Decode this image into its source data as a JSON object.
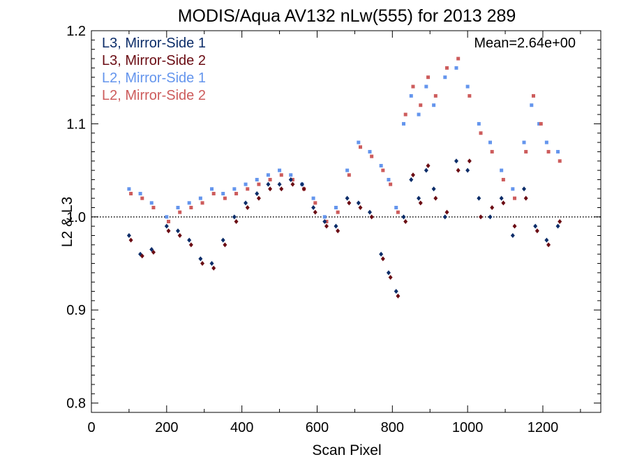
{
  "chart_data": {
    "type": "scatter",
    "title": "MODIS/Aqua AV132 nLw(555) for 2013 289",
    "xlabel": "Scan Pixel",
    "ylabel": "L2 & L3",
    "xlim": [
      0,
      1354
    ],
    "ylim": [
      0.79,
      1.2
    ],
    "x_ticks": [
      0,
      200,
      400,
      600,
      800,
      1000,
      1200
    ],
    "x_tick_labels": [
      "0",
      "200",
      "400",
      "600",
      "800",
      "1000",
      "1200"
    ],
    "y_ticks": [
      0.8,
      0.9,
      1.0,
      1.1,
      1.2
    ],
    "y_tick_labels": [
      "0.8",
      "0.9",
      "1.0",
      "1.1",
      "1.2"
    ],
    "reference_line": {
      "y": 1.0,
      "style": "dotted"
    },
    "annotation": {
      "text": "Mean=2.64e+00",
      "color": "#cd5c5c"
    },
    "legend": {
      "position": "top-left"
    },
    "series": [
      {
        "name": "L3, Mirror-Side 1",
        "color": "#0c2d69",
        "marker": "diamond",
        "x": [
          100,
          130,
          160,
          200,
          230,
          260,
          290,
          320,
          350,
          380,
          410,
          440,
          470,
          500,
          530,
          560,
          590,
          620,
          650,
          680,
          710,
          740,
          770,
          790,
          810,
          830,
          850,
          870,
          890,
          910,
          940,
          970,
          1000,
          1030,
          1060,
          1090,
          1120,
          1150,
          1180,
          1210,
          1240
        ],
        "y": [
          0.98,
          0.96,
          0.965,
          0.99,
          0.985,
          0.975,
          0.955,
          0.95,
          0.975,
          1.0,
          1.015,
          1.025,
          1.035,
          1.035,
          1.04,
          1.035,
          1.01,
          0.995,
          0.99,
          1.02,
          1.015,
          1.005,
          0.96,
          0.94,
          0.92,
          1.0,
          1.04,
          1.02,
          1.05,
          1.03,
          1.0,
          1.06,
          1.05,
          1.02,
          1.0,
          1.02,
          0.98,
          1.03,
          0.99,
          0.975,
          0.99
        ]
      },
      {
        "name": "L3, Mirror-Side 2",
        "color": "#6b0d14",
        "marker": "diamond",
        "x": [
          105,
          135,
          165,
          205,
          235,
          265,
          295,
          325,
          355,
          385,
          415,
          445,
          475,
          505,
          535,
          565,
          595,
          625,
          655,
          685,
          715,
          745,
          775,
          795,
          815,
          835,
          855,
          875,
          895,
          915,
          945,
          975,
          1005,
          1035,
          1065,
          1095,
          1125,
          1155,
          1185,
          1215,
          1245
        ],
        "y": [
          0.975,
          0.958,
          0.962,
          0.985,
          0.98,
          0.97,
          0.95,
          0.945,
          0.97,
          0.995,
          1.01,
          1.02,
          1.03,
          1.03,
          1.035,
          1.03,
          1.005,
          0.99,
          0.985,
          1.015,
          1.01,
          1.0,
          0.955,
          0.935,
          0.915,
          0.995,
          1.045,
          1.015,
          1.055,
          1.02,
          1.005,
          1.05,
          1.06,
          1.0,
          1.01,
          1.015,
          0.99,
          1.02,
          0.985,
          0.97,
          0.995
        ]
      },
      {
        "name": "L2, Mirror-Side 1",
        "color": "#6495ed",
        "marker": "square",
        "x": [
          100,
          130,
          160,
          200,
          230,
          260,
          290,
          320,
          350,
          380,
          410,
          440,
          470,
          500,
          530,
          560,
          590,
          620,
          650,
          680,
          710,
          740,
          770,
          790,
          810,
          830,
          850,
          870,
          890,
          910,
          940,
          970,
          1000,
          1030,
          1060,
          1090,
          1120,
          1150,
          1170,
          1190,
          1210,
          1240
        ],
        "y": [
          1.03,
          1.025,
          1.015,
          1.0,
          1.01,
          1.015,
          1.02,
          1.03,
          1.025,
          1.03,
          1.035,
          1.04,
          1.045,
          1.05,
          1.045,
          1.035,
          1.02,
          1.0,
          1.01,
          1.05,
          1.08,
          1.07,
          1.055,
          1.04,
          1.01,
          1.1,
          1.13,
          1.11,
          1.14,
          1.12,
          1.15,
          1.16,
          1.14,
          1.1,
          1.08,
          1.05,
          1.03,
          1.08,
          1.12,
          1.1,
          1.08,
          1.07
        ]
      },
      {
        "name": "L2, Mirror-Side 2",
        "color": "#cd5c5c",
        "marker": "square",
        "x": [
          105,
          135,
          165,
          205,
          235,
          265,
          295,
          325,
          355,
          385,
          415,
          445,
          475,
          505,
          535,
          565,
          595,
          625,
          655,
          685,
          715,
          745,
          775,
          795,
          815,
          835,
          855,
          875,
          895,
          915,
          945,
          975,
          1005,
          1035,
          1065,
          1095,
          1125,
          1155,
          1175,
          1195,
          1215,
          1245
        ],
        "y": [
          1.025,
          1.02,
          1.01,
          0.995,
          1.005,
          1.01,
          1.015,
          1.025,
          1.02,
          1.025,
          1.03,
          1.035,
          1.04,
          1.045,
          1.04,
          1.03,
          1.015,
          0.995,
          1.005,
          1.045,
          1.075,
          1.065,
          1.05,
          1.035,
          1.005,
          1.11,
          1.14,
          1.12,
          1.15,
          1.13,
          1.16,
          1.17,
          1.13,
          1.09,
          1.07,
          1.04,
          1.02,
          1.07,
          1.13,
          1.1,
          1.07,
          1.06
        ]
      }
    ]
  }
}
